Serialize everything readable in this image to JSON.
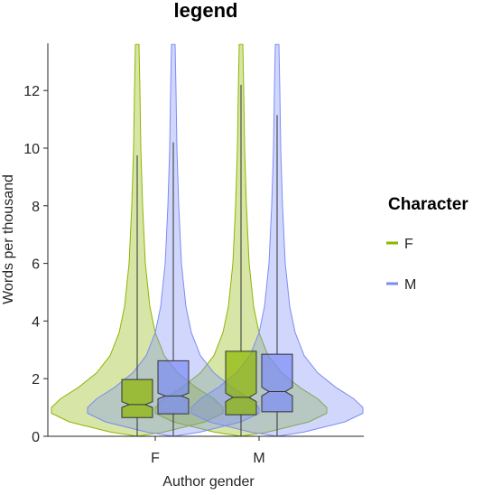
{
  "chart_data": {
    "type": "violin",
    "title": "legend",
    "xlabel": "Author gender",
    "ylabel": "Words per thousand",
    "categories": [
      "F",
      "M"
    ],
    "yticks": [
      "0",
      "2",
      "4",
      "6",
      "8",
      "10",
      "12"
    ],
    "ylim": [
      0,
      13.6
    ],
    "grid": false,
    "legend": {
      "title": "Character",
      "placement": "right",
      "entries": [
        "F",
        "M"
      ]
    },
    "series": [
      {
        "name": "F",
        "color": "#8db600",
        "fill": "#8db600",
        "boxes": [
          {
            "category": "F",
            "q1": 0.65,
            "median": 1.1,
            "q3": 1.97,
            "notch": [
              1.0,
              1.2
            ],
            "whisker_low": 0.0,
            "whisker_high": 9.75,
            "max": 13.6
          },
          {
            "category": "M",
            "q1": 0.75,
            "median": 1.35,
            "q3": 2.95,
            "notch": [
              1.2,
              1.5
            ],
            "whisker_low": 0.0,
            "whisker_high": 12.2,
            "max": 13.6
          }
        ]
      },
      {
        "name": "M",
        "color": "#7b8cf5",
        "fill": "#7b8cf5",
        "boxes": [
          {
            "category": "F",
            "q1": 0.78,
            "median": 1.4,
            "q3": 2.62,
            "notch": [
              1.3,
              1.5
            ],
            "whisker_low": 0.0,
            "whisker_high": 10.2,
            "max": 13.6
          },
          {
            "category": "M",
            "q1": 0.85,
            "median": 1.55,
            "q3": 2.85,
            "notch": [
              1.4,
              1.7
            ],
            "whisker_low": 0.0,
            "whisker_high": 11.15,
            "max": 13.6
          }
        ]
      }
    ]
  }
}
